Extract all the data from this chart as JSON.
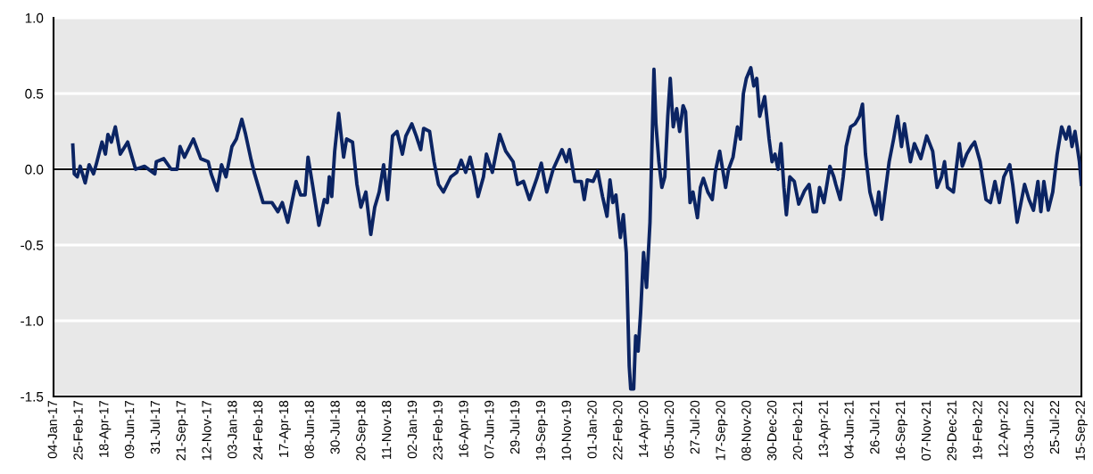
{
  "chart_data": {
    "type": "line",
    "x": [
      "2017-02-12",
      "2017-02-15",
      "2017-02-21",
      "2017-02-27",
      "2017-03-09",
      "2017-03-17",
      "2017-03-26",
      "2017-04-01",
      "2017-04-12",
      "2017-04-19",
      "2017-04-24",
      "2017-05-01",
      "2017-05-09",
      "2017-05-19",
      "2017-06-03",
      "2017-06-19",
      "2017-07-07",
      "2017-07-28",
      "2017-07-31",
      "2017-08-15",
      "2017-08-30",
      "2017-09-11",
      "2017-09-17",
      "2017-09-26",
      "2017-10-14",
      "2017-10-29",
      "2017-11-13",
      "2017-11-19",
      "2017-12-01",
      "2017-12-10",
      "2017-12-19",
      "2017-12-31",
      "2018-01-09",
      "2018-01-20",
      "2018-01-27",
      "2018-02-08",
      "2018-02-14",
      "2018-02-23",
      "2018-03-04",
      "2018-03-22",
      "2018-04-03",
      "2018-04-12",
      "2018-04-23",
      "2018-05-10",
      "2018-05-19",
      "2018-05-28",
      "2018-06-03",
      "2018-06-12",
      "2018-06-25",
      "2018-07-06",
      "2018-07-12",
      "2018-07-16",
      "2018-07-21",
      "2018-07-27",
      "2018-08-04",
      "2018-08-14",
      "2018-08-20",
      "2018-09-01",
      "2018-09-10",
      "2018-09-18",
      "2018-09-28",
      "2018-10-08",
      "2018-10-16",
      "2018-10-25",
      "2018-11-03",
      "2018-11-11",
      "2018-11-21",
      "2018-11-30",
      "2018-12-11",
      "2018-12-18",
      "2018-12-30",
      "2019-01-08",
      "2019-01-17",
      "2019-01-23",
      "2019-02-04",
      "2019-02-13",
      "2019-02-22",
      "2019-03-04",
      "2019-03-19",
      "2019-03-31",
      "2019-04-09",
      "2019-04-18",
      "2019-04-27",
      "2019-05-06",
      "2019-05-13",
      "2019-05-24",
      "2019-05-30",
      "2019-06-11",
      "2019-06-26",
      "2019-07-08",
      "2019-07-23",
      "2019-08-01",
      "2019-08-13",
      "2019-08-25",
      "2019-09-09",
      "2019-09-18",
      "2019-09-29",
      "2019-10-12",
      "2019-10-30",
      "2019-11-08",
      "2019-11-14",
      "2019-11-25",
      "2019-12-08",
      "2019-12-14",
      "2019-12-20",
      "2020-01-01",
      "2020-01-10",
      "2020-01-20",
      "2020-01-29",
      "2020-02-04",
      "2020-02-10",
      "2020-02-16",
      "2020-02-25",
      "2020-03-02",
      "2020-03-08",
      "2020-03-14",
      "2020-03-17",
      "2020-03-23",
      "2020-03-27",
      "2020-04-01",
      "2020-04-06",
      "2020-04-12",
      "2020-04-18",
      "2020-04-25",
      "2020-05-03",
      "2020-05-07",
      "2020-05-13",
      "2020-05-19",
      "2020-05-25",
      "2020-05-31",
      "2020-06-05",
      "2020-06-11",
      "2020-06-18",
      "2020-06-24",
      "2020-07-01",
      "2020-07-06",
      "2020-07-15",
      "2020-07-21",
      "2020-07-30",
      "2020-08-05",
      "2020-08-11",
      "2020-08-20",
      "2020-08-29",
      "2020-09-04",
      "2020-09-13",
      "2020-09-19",
      "2020-09-25",
      "2020-10-01",
      "2020-10-10",
      "2020-10-19",
      "2020-10-25",
      "2020-10-31",
      "2020-11-06",
      "2020-11-15",
      "2020-11-21",
      "2020-11-27",
      "2020-12-03",
      "2020-12-13",
      "2020-12-22",
      "2020-12-28",
      "2021-01-03",
      "2021-01-09",
      "2021-01-15",
      "2021-01-21",
      "2021-01-26",
      "2021-02-02",
      "2021-02-11",
      "2021-02-20",
      "2021-03-04",
      "2021-03-13",
      "2021-03-21",
      "2021-03-28",
      "2021-04-03",
      "2021-04-12",
      "2021-04-24",
      "2021-05-02",
      "2021-05-06",
      "2021-05-15",
      "2021-05-21",
      "2021-05-27",
      "2021-06-05",
      "2021-06-14",
      "2021-06-23",
      "2021-06-29",
      "2021-07-05",
      "2021-07-14",
      "2021-07-26",
      "2021-08-01",
      "2021-08-07",
      "2021-08-16",
      "2021-08-22",
      "2021-08-31",
      "2021-09-08",
      "2021-09-16",
      "2021-09-22",
      "2021-09-29",
      "2021-10-04",
      "2021-10-12",
      "2021-10-25",
      "2021-11-06",
      "2021-11-18",
      "2021-11-27",
      "2021-12-06",
      "2021-12-12",
      "2021-12-18",
      "2021-12-30",
      "2022-01-11",
      "2022-01-17",
      "2022-01-26",
      "2022-02-04",
      "2022-02-11",
      "2022-02-22",
      "2022-03-06",
      "2022-03-15",
      "2022-03-24",
      "2022-04-02",
      "2022-04-11",
      "2022-04-23",
      "2022-04-29",
      "2022-05-08",
      "2022-05-14",
      "2022-05-23",
      "2022-06-01",
      "2022-06-10",
      "2022-06-19",
      "2022-06-25",
      "2022-07-01",
      "2022-07-10",
      "2022-07-19",
      "2022-07-28",
      "2022-08-06",
      "2022-08-15",
      "2022-08-21",
      "2022-08-27",
      "2022-09-02",
      "2022-09-11",
      "2022-09-15"
    ],
    "series": [
      {
        "color": "#0b2463",
        "values": [
          0.16,
          -0.03,
          -0.05,
          0.02,
          -0.09,
          0.03,
          -0.03,
          0.04,
          0.18,
          0.1,
          0.23,
          0.18,
          0.28,
          0.1,
          0.18,
          0.0,
          0.02,
          -0.03,
          0.05,
          0.07,
          0.0,
          0.0,
          0.15,
          0.08,
          0.2,
          0.07,
          0.05,
          -0.03,
          -0.14,
          0.03,
          -0.05,
          0.15,
          0.2,
          0.33,
          0.24,
          0.06,
          -0.02,
          -0.12,
          -0.22,
          -0.22,
          -0.28,
          -0.22,
          -0.35,
          -0.08,
          -0.17,
          -0.17,
          0.08,
          -0.1,
          -0.37,
          -0.2,
          -0.22,
          -0.05,
          -0.18,
          0.12,
          0.37,
          0.08,
          0.2,
          0.18,
          -0.1,
          -0.25,
          -0.15,
          -0.43,
          -0.25,
          -0.15,
          0.03,
          -0.2,
          0.22,
          0.25,
          0.1,
          0.22,
          0.3,
          0.22,
          0.13,
          0.27,
          0.25,
          0.05,
          -0.1,
          -0.15,
          -0.05,
          -0.02,
          0.06,
          -0.02,
          0.08,
          -0.05,
          -0.18,
          -0.05,
          0.1,
          -0.02,
          0.23,
          0.12,
          0.05,
          -0.1,
          -0.08,
          -0.2,
          -0.06,
          0.04,
          -0.15,
          0.0,
          0.13,
          0.05,
          0.13,
          -0.08,
          -0.08,
          -0.2,
          -0.07,
          -0.08,
          -0.01,
          -0.18,
          -0.31,
          -0.07,
          -0.22,
          -0.17,
          -0.45,
          -0.3,
          -0.55,
          -1.3,
          -1.45,
          -1.45,
          -1.1,
          -1.2,
          -0.95,
          -0.55,
          -0.78,
          -0.35,
          0.66,
          0.3,
          0.05,
          -0.12,
          -0.05,
          0.35,
          0.6,
          0.28,
          0.4,
          0.25,
          0.42,
          0.38,
          -0.22,
          -0.15,
          -0.32,
          -0.12,
          -0.06,
          -0.15,
          -0.2,
          -0.02,
          0.12,
          0.0,
          -0.12,
          0.0,
          0.08,
          0.28,
          0.2,
          0.5,
          0.6,
          0.67,
          0.55,
          0.6,
          0.35,
          0.48,
          0.2,
          0.05,
          0.1,
          0.0,
          0.17,
          -0.12,
          -0.3,
          -0.05,
          -0.08,
          -0.23,
          -0.14,
          -0.1,
          -0.28,
          -0.28,
          -0.12,
          -0.22,
          0.02,
          -0.05,
          -0.1,
          -0.2,
          -0.05,
          0.15,
          0.28,
          0.3,
          0.35,
          0.43,
          0.1,
          -0.15,
          -0.3,
          -0.15,
          -0.33,
          -0.1,
          0.05,
          0.2,
          0.35,
          0.15,
          0.3,
          0.15,
          0.05,
          0.17,
          0.07,
          0.22,
          0.12,
          -0.12,
          -0.05,
          0.05,
          -0.12,
          -0.15,
          0.17,
          0.02,
          0.1,
          0.15,
          0.18,
          0.05,
          -0.2,
          -0.22,
          -0.08,
          -0.22,
          -0.05,
          0.03,
          -0.1,
          -0.35,
          -0.25,
          -0.1,
          -0.2,
          -0.27,
          -0.08,
          -0.28,
          -0.08,
          -0.27,
          -0.15,
          0.1,
          0.28,
          0.2,
          0.28,
          0.15,
          0.25,
          0.05,
          -0.1
        ]
      }
    ],
    "xlim": [
      "2017-01-04",
      "2022-09-15"
    ],
    "xticks": [
      {
        "value": "2017-01-04",
        "label": "04-Jan-17"
      },
      {
        "value": "2017-02-25",
        "label": "25-Feb-17"
      },
      {
        "value": "2017-04-18",
        "label": "18-Apr-17"
      },
      {
        "value": "2017-06-09",
        "label": "09-Jun-17"
      },
      {
        "value": "2017-07-31",
        "label": "31-Jul-17"
      },
      {
        "value": "2017-09-21",
        "label": "21-Sep-17"
      },
      {
        "value": "2017-11-12",
        "label": "12-Nov-17"
      },
      {
        "value": "2018-01-03",
        "label": "03-Jan-18"
      },
      {
        "value": "2018-02-24",
        "label": "24-Feb-18"
      },
      {
        "value": "2018-04-17",
        "label": "17-Apr-18"
      },
      {
        "value": "2018-06-08",
        "label": "08-Jun-18"
      },
      {
        "value": "2018-07-30",
        "label": "30-Jul-18"
      },
      {
        "value": "2018-09-20",
        "label": "20-Sep-18"
      },
      {
        "value": "2018-11-11",
        "label": "11-Nov-18"
      },
      {
        "value": "2019-01-02",
        "label": "02-Jan-19"
      },
      {
        "value": "2019-02-23",
        "label": "23-Feb-19"
      },
      {
        "value": "2019-04-16",
        "label": "16-Apr-19"
      },
      {
        "value": "2019-06-07",
        "label": "07-Jun-19"
      },
      {
        "value": "2019-07-29",
        "label": "29-Jul-19"
      },
      {
        "value": "2019-09-19",
        "label": "19-Sep-19"
      },
      {
        "value": "2019-11-10",
        "label": "10-Nov-19"
      },
      {
        "value": "2020-01-01",
        "label": "01-Jan-20"
      },
      {
        "value": "2020-02-22",
        "label": "22-Feb-20"
      },
      {
        "value": "2020-04-14",
        "label": "14-Apr-20"
      },
      {
        "value": "2020-06-05",
        "label": "05-Jun-20"
      },
      {
        "value": "2020-07-27",
        "label": "27-Jul-20"
      },
      {
        "value": "2020-09-17",
        "label": "17-Sep-20"
      },
      {
        "value": "2020-11-08",
        "label": "08-Nov-20"
      },
      {
        "value": "2020-12-30",
        "label": "30-Dec-20"
      },
      {
        "value": "2021-02-20",
        "label": "20-Feb-21"
      },
      {
        "value": "2021-04-13",
        "label": "13-Apr-21"
      },
      {
        "value": "2021-06-04",
        "label": "04-Jun-21"
      },
      {
        "value": "2021-07-26",
        "label": "26-Jul-21"
      },
      {
        "value": "2021-09-16",
        "label": "16-Sep-21"
      },
      {
        "value": "2021-11-07",
        "label": "07-Nov-21"
      },
      {
        "value": "2021-12-29",
        "label": "29-Dec-21"
      },
      {
        "value": "2022-02-19",
        "label": "19-Feb-22"
      },
      {
        "value": "2022-04-12",
        "label": "12-Apr-22"
      },
      {
        "value": "2022-06-03",
        "label": "03-Jun-22"
      },
      {
        "value": "2022-07-25",
        "label": "25-Jul-22"
      },
      {
        "value": "2022-09-15",
        "label": "15-Sep-22"
      }
    ],
    "ylim": [
      -1.5,
      1.0
    ],
    "yticks": [
      {
        "value": -1.5,
        "label": "-1.5"
      },
      {
        "value": -1.0,
        "label": "-1.0"
      },
      {
        "value": -0.5,
        "label": "-0.5"
      },
      {
        "value": 0,
        "label": "0.0"
      },
      {
        "value": 0.5,
        "label": "0.5"
      },
      {
        "value": 1.0,
        "label": "1.0"
      }
    ],
    "ref_lines": [
      {
        "axis": "y",
        "value": 0,
        "color": "#000000",
        "line_style": "solid"
      }
    ],
    "grid": "y",
    "legend": false,
    "marker": "none",
    "line_style": "solid"
  }
}
